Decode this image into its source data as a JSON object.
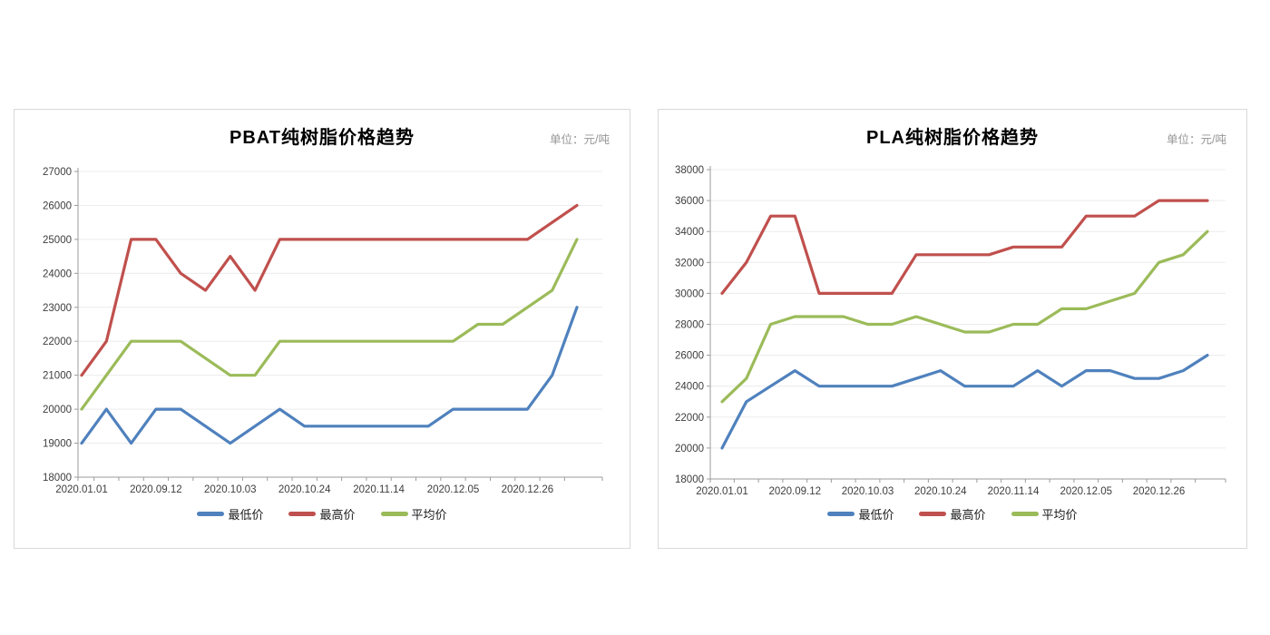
{
  "chart_data": [
    {
      "type": "line",
      "title": "PBAT纯树脂价格趋势",
      "unit_label": "单位：元/吨",
      "y_axis": {
        "min": 18000,
        "max": 27000,
        "step": 1000
      },
      "grid": true,
      "legend_position": "bottom",
      "n_points": 21,
      "x_tick_labels": [
        "2020.01.01",
        "2020.09.12",
        "2020.10.03",
        "2020.10.24",
        "2020.11.14",
        "2020.12.05",
        "2020.12.26"
      ],
      "x_label_indices": [
        0,
        3,
        6,
        9,
        12,
        15,
        18
      ],
      "series": [
        {
          "name": "最低价",
          "color": "#4F81BD",
          "values": [
            19000,
            20000,
            19000,
            20000,
            20000,
            19500,
            19000,
            19500,
            20000,
            19500,
            19500,
            19500,
            19500,
            19500,
            19500,
            20000,
            20000,
            20000,
            20000,
            21000,
            23000
          ]
        },
        {
          "name": "最高价",
          "color": "#C0504D",
          "values": [
            21000,
            22000,
            25000,
            25000,
            24000,
            23500,
            24500,
            23500,
            25000,
            25000,
            25000,
            25000,
            25000,
            25000,
            25000,
            25000,
            25000,
            25000,
            25000,
            25500,
            26000
          ]
        },
        {
          "name": "平均价",
          "color": "#9BBB59",
          "values": [
            20000,
            21000,
            22000,
            22000,
            22000,
            21500,
            21000,
            21000,
            22000,
            22000,
            22000,
            22000,
            22000,
            22000,
            22000,
            22000,
            22500,
            22500,
            23000,
            23500,
            25000
          ]
        }
      ]
    },
    {
      "type": "line",
      "title": "PLA纯树脂价格趋势",
      "unit_label": "单位：元/吨",
      "y_axis": {
        "min": 18000,
        "max": 38000,
        "step": 2000
      },
      "grid": true,
      "legend_position": "bottom",
      "n_points": 21,
      "x_tick_labels": [
        "2020.01.01",
        "2020.09.12",
        "2020.10.03",
        "2020.10.24",
        "2020.11.14",
        "2020.12.05",
        "2020.12.26"
      ],
      "x_label_indices": [
        0,
        3,
        6,
        9,
        12,
        15,
        18
      ],
      "series": [
        {
          "name": "最低价",
          "color": "#4F81BD",
          "values": [
            20000,
            23000,
            24000,
            25000,
            24000,
            24000,
            24000,
            24000,
            24500,
            25000,
            24000,
            24000,
            24000,
            25000,
            24000,
            25000,
            25000,
            24500,
            24500,
            25000,
            26000
          ]
        },
        {
          "name": "最高价",
          "color": "#C0504D",
          "values": [
            30000,
            32000,
            35000,
            35000,
            30000,
            30000,
            30000,
            30000,
            32500,
            32500,
            32500,
            32500,
            33000,
            33000,
            33000,
            35000,
            35000,
            35000,
            36000,
            36000,
            36000
          ]
        },
        {
          "name": "平均价",
          "color": "#9BBB59",
          "values": [
            23000,
            24500,
            28000,
            28500,
            28500,
            28500,
            28000,
            28000,
            28500,
            28000,
            27500,
            27500,
            28000,
            28000,
            29000,
            29000,
            29500,
            30000,
            32000,
            32500,
            34000
          ]
        }
      ]
    }
  ]
}
